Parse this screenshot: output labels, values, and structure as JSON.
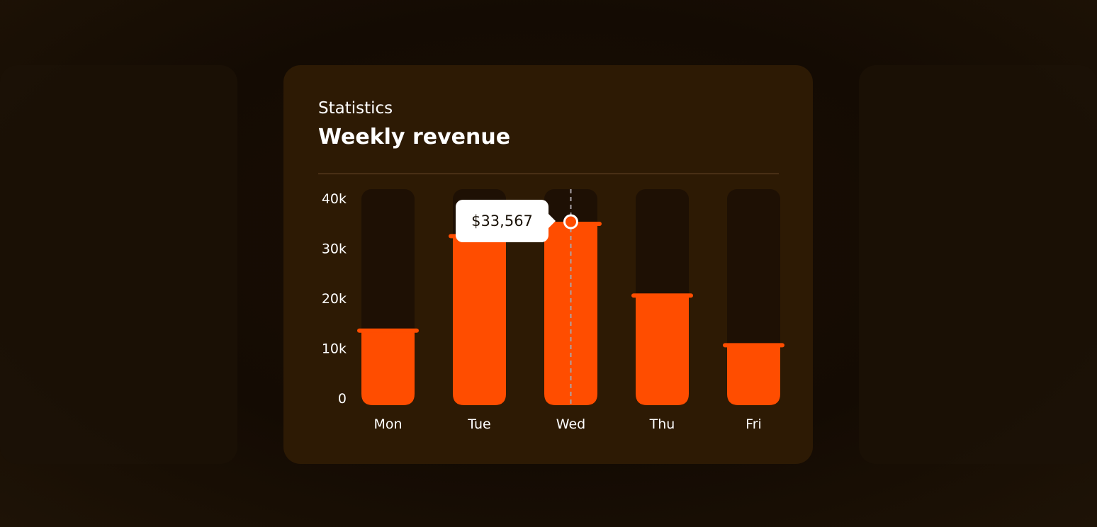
{
  "card": {
    "subtitle": "Statistics",
    "title": "Weekly revenue"
  },
  "tooltip": {
    "label": "$33,567",
    "day": "Wed"
  },
  "colors": {
    "bar": "#ff4d00",
    "track": "#1e1004",
    "card": "#2d1a04"
  },
  "chart_data": {
    "type": "bar",
    "title": "Weekly revenue",
    "categories": [
      "Mon",
      "Tue",
      "Wed",
      "Thu",
      "Fri"
    ],
    "values": [
      13800,
      31300,
      33567,
      20300,
      11100
    ],
    "ylim": [
      0,
      40000
    ],
    "yticks": [
      {
        "v": 0,
        "label": "0"
      },
      {
        "v": 10000,
        "label": "10k"
      },
      {
        "v": 20000,
        "label": "20k"
      },
      {
        "v": 30000,
        "label": "30k"
      },
      {
        "v": 40000,
        "label": "40k"
      }
    ],
    "xlabel": "",
    "ylabel": "",
    "grid": false
  }
}
